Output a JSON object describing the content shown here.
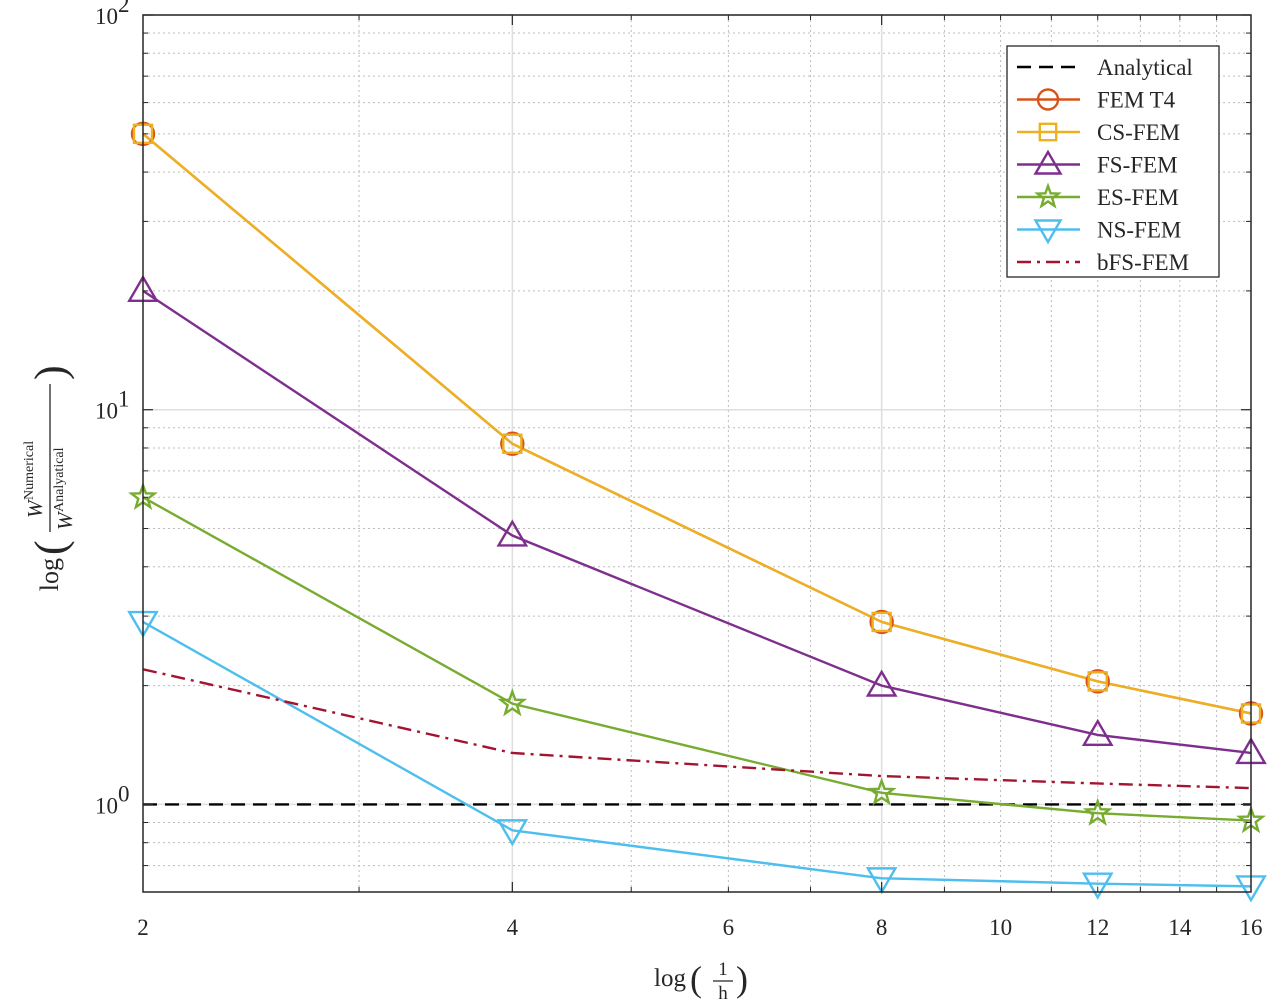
{
  "chart_data": {
    "type": "line",
    "xscale": "log",
    "yscale": "log",
    "x": [
      2,
      4,
      8,
      12,
      16
    ],
    "xlim": [
      2,
      16
    ],
    "ylim": [
      0.6,
      100
    ],
    "xticks": [
      2,
      4,
      6,
      8,
      10,
      12,
      14,
      16
    ],
    "xtick_labels": [
      "2",
      "4",
      "6",
      "8",
      "10",
      "12",
      "14",
      "16"
    ],
    "ytick_labels": [
      {
        "base": "10",
        "exp": "0"
      },
      {
        "base": "10",
        "exp": "1"
      },
      {
        "base": "10",
        "exp": "2"
      }
    ],
    "xlabel": {
      "prefix": "log",
      "num": "1",
      "den": "h"
    },
    "ylabel": {
      "prefix": "log",
      "num_base": "W",
      "num_sup": "Numerical",
      "den_base": "W",
      "den_sup": "Analyatical"
    },
    "grid": true,
    "minor_grid": true,
    "legend_position": "top-right",
    "series": [
      {
        "name": "Analytical",
        "color": "#000000",
        "linestyle": "dashed",
        "marker": "none",
        "values": [
          1,
          1,
          1,
          1,
          1
        ]
      },
      {
        "name": "FEM T4",
        "color": "#D95319",
        "linestyle": "solid",
        "marker": "circle",
        "values": [
          50,
          8.2,
          2.9,
          2.05,
          1.7
        ]
      },
      {
        "name": "CS-FEM",
        "color": "#EDB120",
        "linestyle": "solid",
        "marker": "square",
        "values": [
          50,
          8.2,
          2.9,
          2.05,
          1.7
        ]
      },
      {
        "name": "FS-FEM",
        "color": "#7E2F8E",
        "linestyle": "solid",
        "marker": "triangle-up",
        "values": [
          20,
          4.8,
          2.0,
          1.5,
          1.35
        ]
      },
      {
        "name": "ES-FEM",
        "color": "#77AC30",
        "linestyle": "solid",
        "marker": "star",
        "values": [
          6,
          1.8,
          1.07,
          0.95,
          0.91
        ]
      },
      {
        "name": "NS-FEM",
        "color": "#4DBEEE",
        "linestyle": "solid",
        "marker": "triangle-down",
        "values": [
          2.9,
          0.86,
          0.65,
          0.63,
          0.62
        ]
      },
      {
        "name": "bFS-FEM",
        "color": "#A2142F",
        "linestyle": "dashdot",
        "marker": "none",
        "values": [
          2.2,
          1.35,
          1.18,
          1.13,
          1.1
        ]
      }
    ]
  }
}
